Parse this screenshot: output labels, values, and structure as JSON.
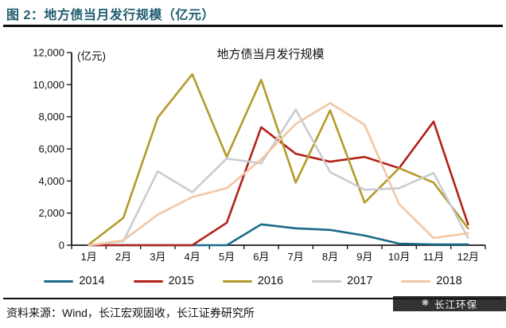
{
  "figure": {
    "title": "图 2：地方债当月发行规模（亿元）",
    "source_label": "资料来源：Wind，长江宏观固收，长江证券研究所",
    "watermark": "长江环保"
  },
  "chart_data": {
    "type": "line",
    "title": "地方债当月发行规模",
    "unit_label": "(亿元)",
    "xlabel": "",
    "ylabel": "亿元",
    "categories": [
      "1月",
      "2月",
      "3月",
      "4月",
      "5月",
      "6月",
      "7月",
      "8月",
      "9月",
      "10月",
      "11月",
      "12月"
    ],
    "series": [
      {
        "name": "2014",
        "color": "#1c6a8a",
        "values": [
          0,
          0,
          0,
          0,
          0,
          1300,
          1050,
          950,
          600,
          100,
          50,
          50
        ]
      },
      {
        "name": "2015",
        "color": "#b22218",
        "values": [
          0,
          0,
          0,
          0,
          1400,
          7350,
          5700,
          5200,
          5500,
          4800,
          7700,
          1300
        ]
      },
      {
        "name": "2016",
        "color": "#b49b2b",
        "values": [
          50,
          1700,
          7950,
          10650,
          5500,
          10300,
          3900,
          8400,
          2650,
          4800,
          3900,
          1050
        ]
      },
      {
        "name": "2017",
        "color": "#c8cdd2",
        "values": [
          0,
          250,
          4600,
          3300,
          5400,
          5100,
          8450,
          4550,
          3450,
          3550,
          4500,
          450
        ]
      },
      {
        "name": "2018",
        "color": "#f3c7a4",
        "values": [
          0,
          300,
          1900,
          3000,
          3550,
          5350,
          7550,
          8850,
          7500,
          2550,
          450,
          750
        ]
      }
    ],
    "ylim": [
      0,
      12000
    ],
    "ytick_step": 2000,
    "ytick_labels": [
      "0",
      "2,000",
      "4,000",
      "6,000",
      "8,000",
      "10,000",
      "12,000"
    ],
    "legend_position": "bottom",
    "grid": false
  }
}
